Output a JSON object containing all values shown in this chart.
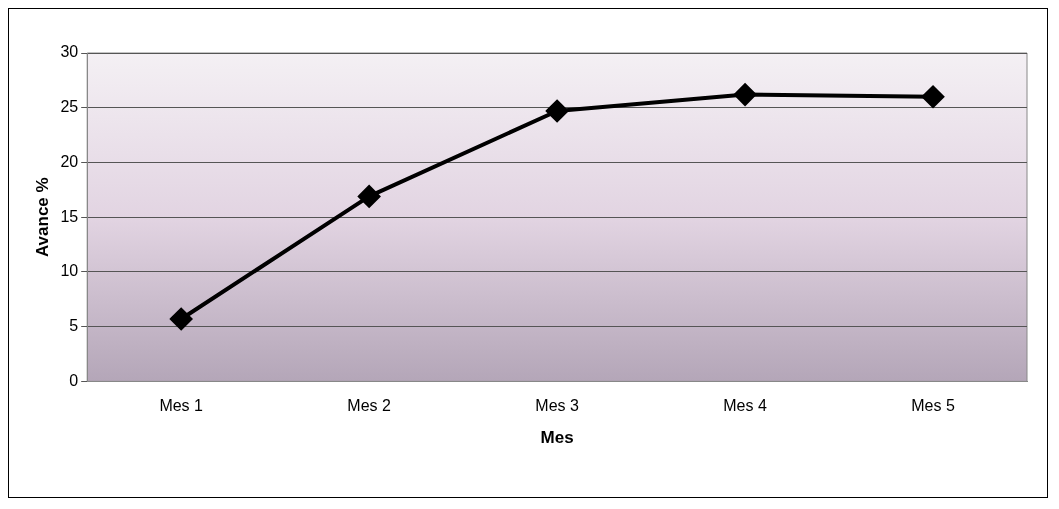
{
  "chart_data": {
    "type": "line",
    "xlabel": "Mes",
    "ylabel": "Avance %",
    "categories": [
      "Mes 1",
      "Mes 2",
      "Mes 3",
      "Mes 4",
      "Mes 5"
    ],
    "series": [
      {
        "color": "#000000",
        "values": [
          5.7,
          16.9,
          24.7,
          26.2,
          26.0
        ]
      }
    ],
    "ylim": [
      0,
      30
    ],
    "yticks": [
      0,
      5,
      10,
      15,
      20,
      25,
      30
    ],
    "grid": "y",
    "legend": false,
    "marker": "diamond",
    "line_style": "solid"
  }
}
